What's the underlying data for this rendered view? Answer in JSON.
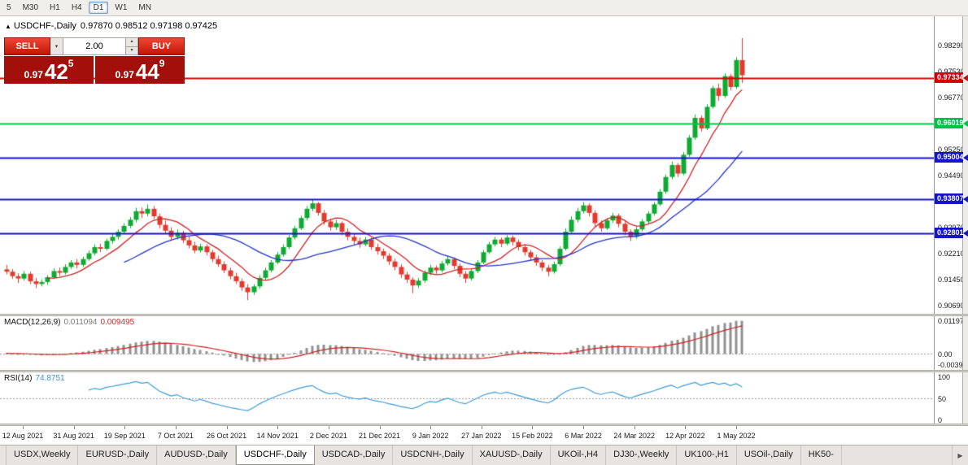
{
  "icons": {
    "collapse": "▲",
    "caret_down": "▾",
    "caret_up": "▴",
    "scroll_right": "▶"
  },
  "toolbar": {
    "timeframes": [
      "5",
      "M30",
      "H1",
      "H4",
      "D1",
      "W1",
      "MN"
    ],
    "active_timeframe": "D1"
  },
  "chart": {
    "symbol_title": "USDCHF-,Daily",
    "ohlc_text": "0.97870 0.98512 0.97198 0.97425",
    "price_max": 0.9915,
    "price_min": 0.9045,
    "y_ticks": [
      "0.98290",
      "0.97530",
      "0.96770",
      "0.96010",
      "0.95250",
      "0.94490",
      "0.93730",
      "0.92970",
      "0.92210",
      "0.91450",
      "0.90690"
    ],
    "h_lines": [
      {
        "price": 0.97334,
        "label": "0.97334",
        "color": "#d20000",
        "width": 2
      },
      {
        "price": 0.96019,
        "label": "0.96019",
        "color": "#00c24a",
        "width": 2
      },
      {
        "price": 0.95004,
        "label": "0.95004",
        "color": "#1414c8",
        "width": 2
      },
      {
        "price": 0.93807,
        "label": "0.93807",
        "color": "#1414c8",
        "width": 2
      },
      {
        "price": 0.92801,
        "label": "0.92801",
        "color": "#1414c8",
        "width": 2
      }
    ],
    "colors": {
      "up": "#0faa31",
      "down": "#e23a2e",
      "ma_fast": "#d02020",
      "ma_slow": "#2433c8",
      "macd_hist": "#909090",
      "macd_signal": "#d02020",
      "rsi": "#3d9bd5"
    }
  },
  "trade_panel": {
    "sell_label": "SELL",
    "buy_label": "BUY",
    "volume": "2.00",
    "sell_price": {
      "prefix": "0.97",
      "big": "42",
      "sup": "5"
    },
    "buy_price": {
      "prefix": "0.97",
      "big": "44",
      "sup": "9"
    }
  },
  "macd_panel": {
    "label": "MACD(12,26,9)",
    "value_main": "0.011094",
    "value_signal": "0.009495",
    "axis": [
      "0.011979",
      "0.00",
      "-0.00395"
    ]
  },
  "rsi_panel": {
    "label": "RSI(14)",
    "value": "74.8751",
    "axis": [
      "100",
      "50",
      "0"
    ]
  },
  "x_axis": [
    "12 Aug 2021",
    "31 Aug 2021",
    "19 Sep 2021",
    "7 Oct 2021",
    "26 Oct 2021",
    "14 Nov 2021",
    "2 Dec 2021",
    "21 Dec 2021",
    "9 Jan 2022",
    "27 Jan 2022",
    "15 Feb 2022",
    "6 Mar 2022",
    "24 Mar 2022",
    "12 Apr 2022",
    "1 May 2022"
  ],
  "tabs": {
    "items": [
      "USDX,Weekly",
      "EURUSD-,Daily",
      "AUDUSD-,Daily",
      "USDCHF-,Daily",
      "USDCAD-,Daily",
      "USDCNH-,Daily",
      "XAUUSD-,Daily",
      "UKOil-,H4",
      "DJ30-,Weekly",
      "UK100-,H1",
      "USOil-,Daily",
      "HK50-"
    ],
    "active": "USDCHF-,Daily"
  },
  "chart_data": {
    "type": "candlestick",
    "symbol": "USDCHF",
    "timeframe": "Daily",
    "last_ohlc": {
      "open": 0.9787,
      "high": 0.98512,
      "low": 0.97198,
      "close": 0.97425
    },
    "levels": [
      0.97334,
      0.96019,
      0.95004,
      0.93807,
      0.92801
    ],
    "candles": [
      [
        0.9175,
        0.9188,
        0.916,
        0.9168
      ],
      [
        0.9168,
        0.9176,
        0.9147,
        0.9155
      ],
      [
        0.9155,
        0.9163,
        0.9135,
        0.9148
      ],
      [
        0.9148,
        0.917,
        0.9142,
        0.9162
      ],
      [
        0.9162,
        0.9168,
        0.9132,
        0.914
      ],
      [
        0.914,
        0.915,
        0.912,
        0.9132
      ],
      [
        0.9132,
        0.9146,
        0.9125,
        0.9138
      ],
      [
        0.9138,
        0.9158,
        0.913,
        0.9152
      ],
      [
        0.9152,
        0.9178,
        0.9148,
        0.917
      ],
      [
        0.917,
        0.918,
        0.9155,
        0.9165
      ],
      [
        0.9165,
        0.919,
        0.916,
        0.9182
      ],
      [
        0.9182,
        0.9202,
        0.9176,
        0.9195
      ],
      [
        0.9195,
        0.9205,
        0.9178,
        0.9188
      ],
      [
        0.9188,
        0.9212,
        0.9182,
        0.9205
      ],
      [
        0.9205,
        0.923,
        0.92,
        0.9222
      ],
      [
        0.9222,
        0.9248,
        0.9216,
        0.924
      ],
      [
        0.924,
        0.925,
        0.9225,
        0.9235
      ],
      [
        0.9235,
        0.9265,
        0.923,
        0.9258
      ],
      [
        0.9258,
        0.9278,
        0.925,
        0.927
      ],
      [
        0.927,
        0.9292,
        0.9262,
        0.9285
      ],
      [
        0.9285,
        0.931,
        0.9278,
        0.9302
      ],
      [
        0.9302,
        0.9328,
        0.9295,
        0.932
      ],
      [
        0.932,
        0.9355,
        0.9312,
        0.9345
      ],
      [
        0.9345,
        0.9356,
        0.9325,
        0.9338
      ],
      [
        0.9338,
        0.9365,
        0.933,
        0.9352
      ],
      [
        0.9352,
        0.936,
        0.9322,
        0.933
      ],
      [
        0.933,
        0.9338,
        0.9295,
        0.9305
      ],
      [
        0.9305,
        0.9318,
        0.9278,
        0.9288
      ],
      [
        0.9288,
        0.9298,
        0.926,
        0.927
      ],
      [
        0.927,
        0.9292,
        0.9262,
        0.9282
      ],
      [
        0.9282,
        0.9288,
        0.9252,
        0.926
      ],
      [
        0.926,
        0.9272,
        0.9236,
        0.9245
      ],
      [
        0.9245,
        0.9256,
        0.9222,
        0.923
      ],
      [
        0.923,
        0.925,
        0.9224,
        0.9242
      ],
      [
        0.9242,
        0.9248,
        0.9216,
        0.9225
      ],
      [
        0.9225,
        0.9232,
        0.9196,
        0.9205
      ],
      [
        0.9205,
        0.9215,
        0.9182,
        0.919
      ],
      [
        0.919,
        0.9198,
        0.9164,
        0.9172
      ],
      [
        0.9172,
        0.918,
        0.9146,
        0.9155
      ],
      [
        0.9155,
        0.9165,
        0.9132,
        0.914
      ],
      [
        0.914,
        0.9148,
        0.9112,
        0.9122
      ],
      [
        0.9122,
        0.9132,
        0.9085,
        0.9108
      ],
      [
        0.9108,
        0.9132,
        0.91,
        0.9125
      ],
      [
        0.9125,
        0.9158,
        0.9118,
        0.915
      ],
      [
        0.915,
        0.918,
        0.9144,
        0.9172
      ],
      [
        0.9172,
        0.9202,
        0.9166,
        0.9195
      ],
      [
        0.9195,
        0.9226,
        0.919,
        0.9218
      ],
      [
        0.9218,
        0.9248,
        0.9212,
        0.924
      ],
      [
        0.924,
        0.9275,
        0.9234,
        0.9268
      ],
      [
        0.9268,
        0.9302,
        0.9262,
        0.9295
      ],
      [
        0.9295,
        0.9332,
        0.929,
        0.9325
      ],
      [
        0.9325,
        0.936,
        0.9318,
        0.9352
      ],
      [
        0.9352,
        0.9378,
        0.9345,
        0.9368
      ],
      [
        0.9368,
        0.9372,
        0.9332,
        0.934
      ],
      [
        0.934,
        0.9348,
        0.9305,
        0.9315
      ],
      [
        0.9315,
        0.9322,
        0.9288,
        0.9298
      ],
      [
        0.9298,
        0.932,
        0.929,
        0.931
      ],
      [
        0.931,
        0.9315,
        0.9275,
        0.9285
      ],
      [
        0.9285,
        0.9295,
        0.926,
        0.927
      ],
      [
        0.927,
        0.928,
        0.9248,
        0.9258
      ],
      [
        0.9258,
        0.9268,
        0.9238,
        0.9248
      ],
      [
        0.9248,
        0.927,
        0.9242,
        0.9262
      ],
      [
        0.9262,
        0.9268,
        0.9232,
        0.924
      ],
      [
        0.924,
        0.925,
        0.9218,
        0.9228
      ],
      [
        0.9228,
        0.9236,
        0.9205,
        0.9215
      ],
      [
        0.9215,
        0.9222,
        0.9188,
        0.9198
      ],
      [
        0.9198,
        0.9206,
        0.9172,
        0.9182
      ],
      [
        0.9182,
        0.919,
        0.915,
        0.916
      ],
      [
        0.916,
        0.9168,
        0.9135,
        0.9145
      ],
      [
        0.9145,
        0.9152,
        0.9105,
        0.9128
      ],
      [
        0.9128,
        0.915,
        0.912,
        0.9142
      ],
      [
        0.9142,
        0.9172,
        0.9136,
        0.9165
      ],
      [
        0.9165,
        0.9188,
        0.9158,
        0.918
      ],
      [
        0.918,
        0.9186,
        0.9162,
        0.9172
      ],
      [
        0.9172,
        0.92,
        0.9166,
        0.9192
      ],
      [
        0.9192,
        0.9215,
        0.9186,
        0.9205
      ],
      [
        0.9205,
        0.921,
        0.9176,
        0.9185
      ],
      [
        0.9185,
        0.9192,
        0.9152,
        0.9162
      ],
      [
        0.9162,
        0.917,
        0.9135,
        0.9148
      ],
      [
        0.9148,
        0.9178,
        0.9142,
        0.917
      ],
      [
        0.917,
        0.9202,
        0.9164,
        0.9195
      ],
      [
        0.9195,
        0.9232,
        0.919,
        0.9225
      ],
      [
        0.9225,
        0.9255,
        0.922,
        0.9248
      ],
      [
        0.9248,
        0.927,
        0.9242,
        0.9262
      ],
      [
        0.9262,
        0.9268,
        0.924,
        0.925
      ],
      [
        0.925,
        0.9275,
        0.9245,
        0.9268
      ],
      [
        0.9268,
        0.9274,
        0.9245,
        0.9255
      ],
      [
        0.9255,
        0.9262,
        0.923,
        0.924
      ],
      [
        0.924,
        0.9248,
        0.9215,
        0.9225
      ],
      [
        0.9225,
        0.9232,
        0.92,
        0.921
      ],
      [
        0.921,
        0.9218,
        0.9185,
        0.9195
      ],
      [
        0.9195,
        0.9202,
        0.917,
        0.918
      ],
      [
        0.918,
        0.9188,
        0.9155,
        0.9168
      ],
      [
        0.9168,
        0.9198,
        0.9162,
        0.919
      ],
      [
        0.919,
        0.9242,
        0.9184,
        0.9235
      ],
      [
        0.9235,
        0.9295,
        0.923,
        0.9285
      ],
      [
        0.9285,
        0.933,
        0.928,
        0.932
      ],
      [
        0.932,
        0.9355,
        0.9312,
        0.9345
      ],
      [
        0.9345,
        0.9372,
        0.9338,
        0.9362
      ],
      [
        0.9362,
        0.9368,
        0.933,
        0.934
      ],
      [
        0.934,
        0.9348,
        0.93,
        0.931
      ],
      [
        0.931,
        0.9318,
        0.9285,
        0.9295
      ],
      [
        0.9295,
        0.9325,
        0.929,
        0.9318
      ],
      [
        0.9318,
        0.934,
        0.931,
        0.9332
      ],
      [
        0.9332,
        0.9338,
        0.9298,
        0.9308
      ],
      [
        0.9308,
        0.9315,
        0.9275,
        0.9285
      ],
      [
        0.9285,
        0.9292,
        0.9258,
        0.927
      ],
      [
        0.927,
        0.93,
        0.9264,
        0.9292
      ],
      [
        0.9292,
        0.9322,
        0.9286,
        0.9315
      ],
      [
        0.9315,
        0.9345,
        0.9308,
        0.9338
      ],
      [
        0.9338,
        0.9372,
        0.9332,
        0.9365
      ],
      [
        0.9365,
        0.941,
        0.936,
        0.9402
      ],
      [
        0.9402,
        0.9452,
        0.9396,
        0.9445
      ],
      [
        0.9445,
        0.949,
        0.9438,
        0.948
      ],
      [
        0.948,
        0.9486,
        0.9445,
        0.9455
      ],
      [
        0.9455,
        0.9518,
        0.945,
        0.951
      ],
      [
        0.951,
        0.9568,
        0.9504,
        0.956
      ],
      [
        0.956,
        0.9628,
        0.9554,
        0.9618
      ],
      [
        0.9618,
        0.9625,
        0.9578,
        0.9587
      ],
      [
        0.9587,
        0.9658,
        0.9582,
        0.965
      ],
      [
        0.965,
        0.9712,
        0.9645,
        0.9705
      ],
      [
        0.9705,
        0.9718,
        0.9668,
        0.9682
      ],
      [
        0.9682,
        0.9748,
        0.9676,
        0.974
      ],
      [
        0.974,
        0.9746,
        0.9698,
        0.9708
      ],
      [
        0.9708,
        0.9795,
        0.9702,
        0.9787
      ],
      [
        0.9787,
        0.98512,
        0.97198,
        0.97425
      ]
    ]
  }
}
